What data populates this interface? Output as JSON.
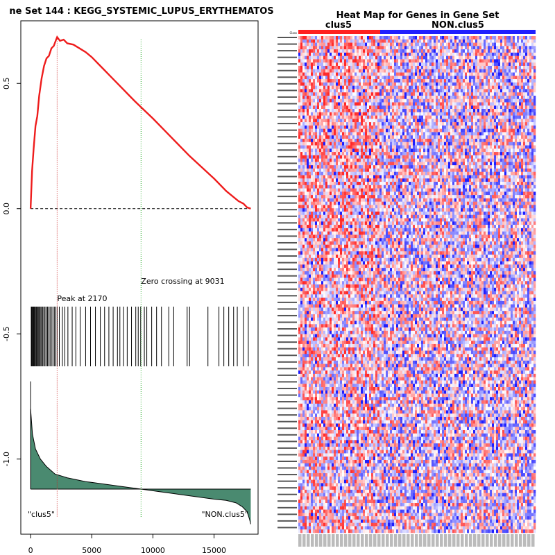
{
  "chart_data": [
    {
      "type": "line",
      "title": "ne Set  144 : KEGG_SYSTEMIC_LUPUS_ERYTHEMATOS",
      "xlabel": "",
      "ylabel": "",
      "xlim": [
        -800,
        18600
      ],
      "ylim": [
        -1.3,
        0.75
      ],
      "x_ticks": [
        0,
        5000,
        10000,
        15000
      ],
      "x_tick_labels": [
        "0",
        "5000",
        "10000",
        "15000"
      ],
      "y_ticks": [
        0.5,
        0.0,
        -0.5,
        -1.0
      ],
      "y_tick_labels": [
        "0.5",
        "0.0",
        "-0.5",
        "-1.0"
      ],
      "series": [
        {
          "name": "",
          "color": "#ee1c1c",
          "x": [
            0,
            120,
            250,
            400,
            550,
            700,
            900,
            1100,
            1300,
            1500,
            1700,
            1900,
            2050,
            2170,
            2400,
            2700,
            3000,
            3500,
            4000,
            4500,
            5000,
            5500,
            6000,
            6500,
            7000,
            7500,
            8000,
            8500,
            9031,
            10000,
            11000,
            12000,
            13000,
            14000,
            15000,
            16000,
            17000,
            17400,
            17700,
            18000
          ],
          "y": [
            0.0,
            0.15,
            0.24,
            0.33,
            0.37,
            0.45,
            0.52,
            0.57,
            0.6,
            0.61,
            0.64,
            0.65,
            0.67,
            0.685,
            0.67,
            0.675,
            0.66,
            0.655,
            0.64,
            0.625,
            0.605,
            0.58,
            0.555,
            0.53,
            0.505,
            0.48,
            0.455,
            0.43,
            0.405,
            0.36,
            0.31,
            0.26,
            0.21,
            0.165,
            0.12,
            0.07,
            0.03,
            0.02,
            0.005,
            0.0
          ]
        }
      ],
      "hit_positions": [
        50,
        100,
        160,
        220,
        280,
        340,
        400,
        470,
        540,
        610,
        680,
        760,
        840,
        920,
        1000,
        1090,
        1180,
        1280,
        1380,
        1480,
        1590,
        1700,
        1820,
        1940,
        2060,
        2170,
        2350,
        2600,
        2800,
        3050,
        3400,
        3700,
        4050,
        4500,
        4900,
        5300,
        5700,
        6050,
        6400,
        6750,
        7100,
        7300,
        7600,
        7900,
        8250,
        8600,
        8800,
        9000,
        9300,
        9500,
        9900,
        10300,
        10700,
        11300,
        11700,
        12800,
        13000,
        14500,
        15400,
        15800,
        16200,
        16600,
        16900,
        17400,
        17800
      ],
      "ranked_metric": {
        "color": "#4a8a70",
        "x": [
          0,
          150,
          400,
          800,
          1300,
          2000,
          3000,
          4500,
          6000,
          7500,
          9031,
          10500,
          12000,
          13500,
          15000,
          16000,
          16800,
          17300,
          17700,
          17900,
          18000
        ],
        "y": [
          -0.8,
          -0.9,
          -0.96,
          -1.0,
          -1.03,
          -1.06,
          -1.075,
          -1.09,
          -1.1,
          -1.11,
          -1.12,
          -1.13,
          -1.14,
          -1.15,
          -1.16,
          -1.165,
          -1.175,
          -1.19,
          -1.21,
          -1.24,
          -1.26
        ]
      },
      "annotations": {
        "peak_label": "Peak at 2170",
        "peak_x": 2170,
        "zero_label": "Zero crossing at 9031",
        "zero_x": 9031,
        "left_class_label": "\"clus5\"",
        "right_class_label": "\"NON.clus5\""
      },
      "grid": false
    },
    {
      "type": "heatmap",
      "title": "Heat Map for Genes in Gene Set",
      "group_labels": [
        "clus5",
        "NON.clus5"
      ],
      "group_colors": [
        "#ff2020",
        "#2020ff"
      ],
      "color_scale": [
        "#0000ff",
        "#ffffff",
        "#ff0000"
      ],
      "first_row_label": "Class"
    }
  ]
}
